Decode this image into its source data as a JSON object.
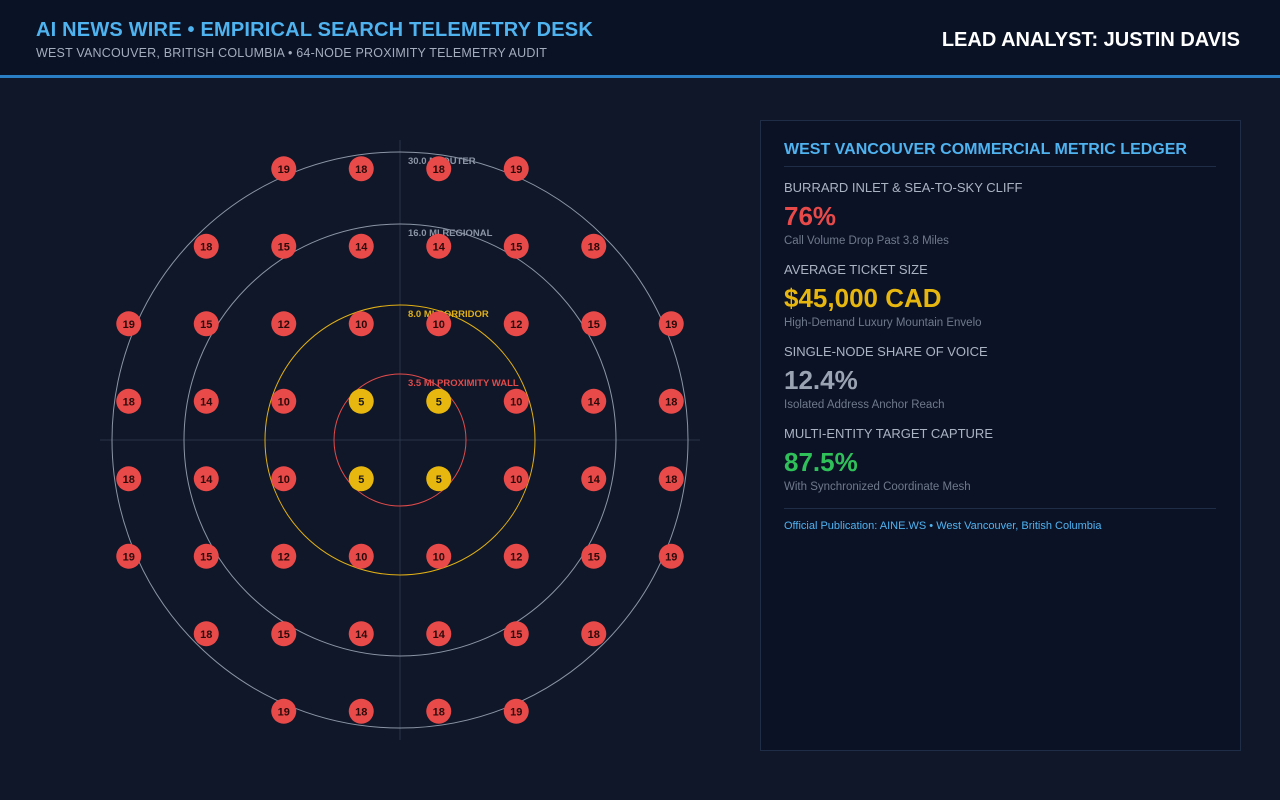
{
  "header": {
    "title": "AI NEWS WIRE • EMPIRICAL SEARCH TELEMETRY DESK",
    "subtitle": "WEST VANCOUVER, BRITISH COLUMBIA • 64-NODE PROXIMITY TELEMETRY AUDIT",
    "analyst": "LEAD ANALYST: JUSTIN DAVIS"
  },
  "colors": {
    "accent": "#4fb3f0",
    "node_red": "#e84a4a",
    "node_yellow": "#e8b70f",
    "ring_red": "#e24b4b",
    "ring_yellow": "#e2b016",
    "ring_gray": "#9aa3b2",
    "green": "#2fc05a"
  },
  "map": {
    "rings": [
      {
        "label": "3.5 MI PROXIMITY WALL",
        "miles": 3.5,
        "color": "#e24b4b"
      },
      {
        "label": "8.0 MI CORRIDOR",
        "miles": 8.0,
        "color": "#e2b016"
      },
      {
        "label": "16.0 MI REGIONAL",
        "miles": 16.0,
        "color": "#8b95a5"
      },
      {
        "label": "30.0 MI OUTER",
        "miles": 30.0,
        "color": "#8b95a5"
      }
    ],
    "grid": [
      [
        null,
        null,
        19,
        18,
        18,
        19,
        null,
        null
      ],
      [
        null,
        18,
        15,
        14,
        14,
        15,
        18,
        null
      ],
      [
        19,
        15,
        12,
        10,
        10,
        12,
        15,
        19
      ],
      [
        18,
        14,
        10,
        5,
        5,
        10,
        14,
        18
      ],
      [
        18,
        14,
        10,
        5,
        5,
        10,
        14,
        18
      ],
      [
        19,
        15,
        12,
        10,
        10,
        12,
        15,
        19
      ],
      [
        null,
        18,
        15,
        14,
        14,
        15,
        18,
        null
      ],
      [
        null,
        null,
        19,
        18,
        18,
        19,
        null,
        null
      ]
    ]
  },
  "ledger": {
    "title": "WEST VANCOUVER COMMERCIAL METRIC LEDGER",
    "metrics": [
      {
        "label": "BURRARD INLET & SEA-TO-SKY CLIFF",
        "value": "76%",
        "note": "Call Volume Drop Past 3.8 Miles",
        "color": "#e84a4a"
      },
      {
        "label": "AVERAGE TICKET SIZE",
        "value": "$45,000 CAD",
        "note": "High-Demand Luxury Mountain Envelo",
        "color": "#e8b70f"
      },
      {
        "label": "SINGLE-NODE SHARE OF VOICE",
        "value": "12.4%",
        "note": "Isolated Address Anchor Reach",
        "color": "#9aa3b2"
      },
      {
        "label": "MULTI-ENTITY TARGET CAPTURE",
        "value": "87.5%",
        "note": "With Synchronized Coordinate Mesh",
        "color": "#2fc05a"
      }
    ],
    "footer": "Official Publication: AINE.WS • West Vancouver, British Columbia"
  }
}
